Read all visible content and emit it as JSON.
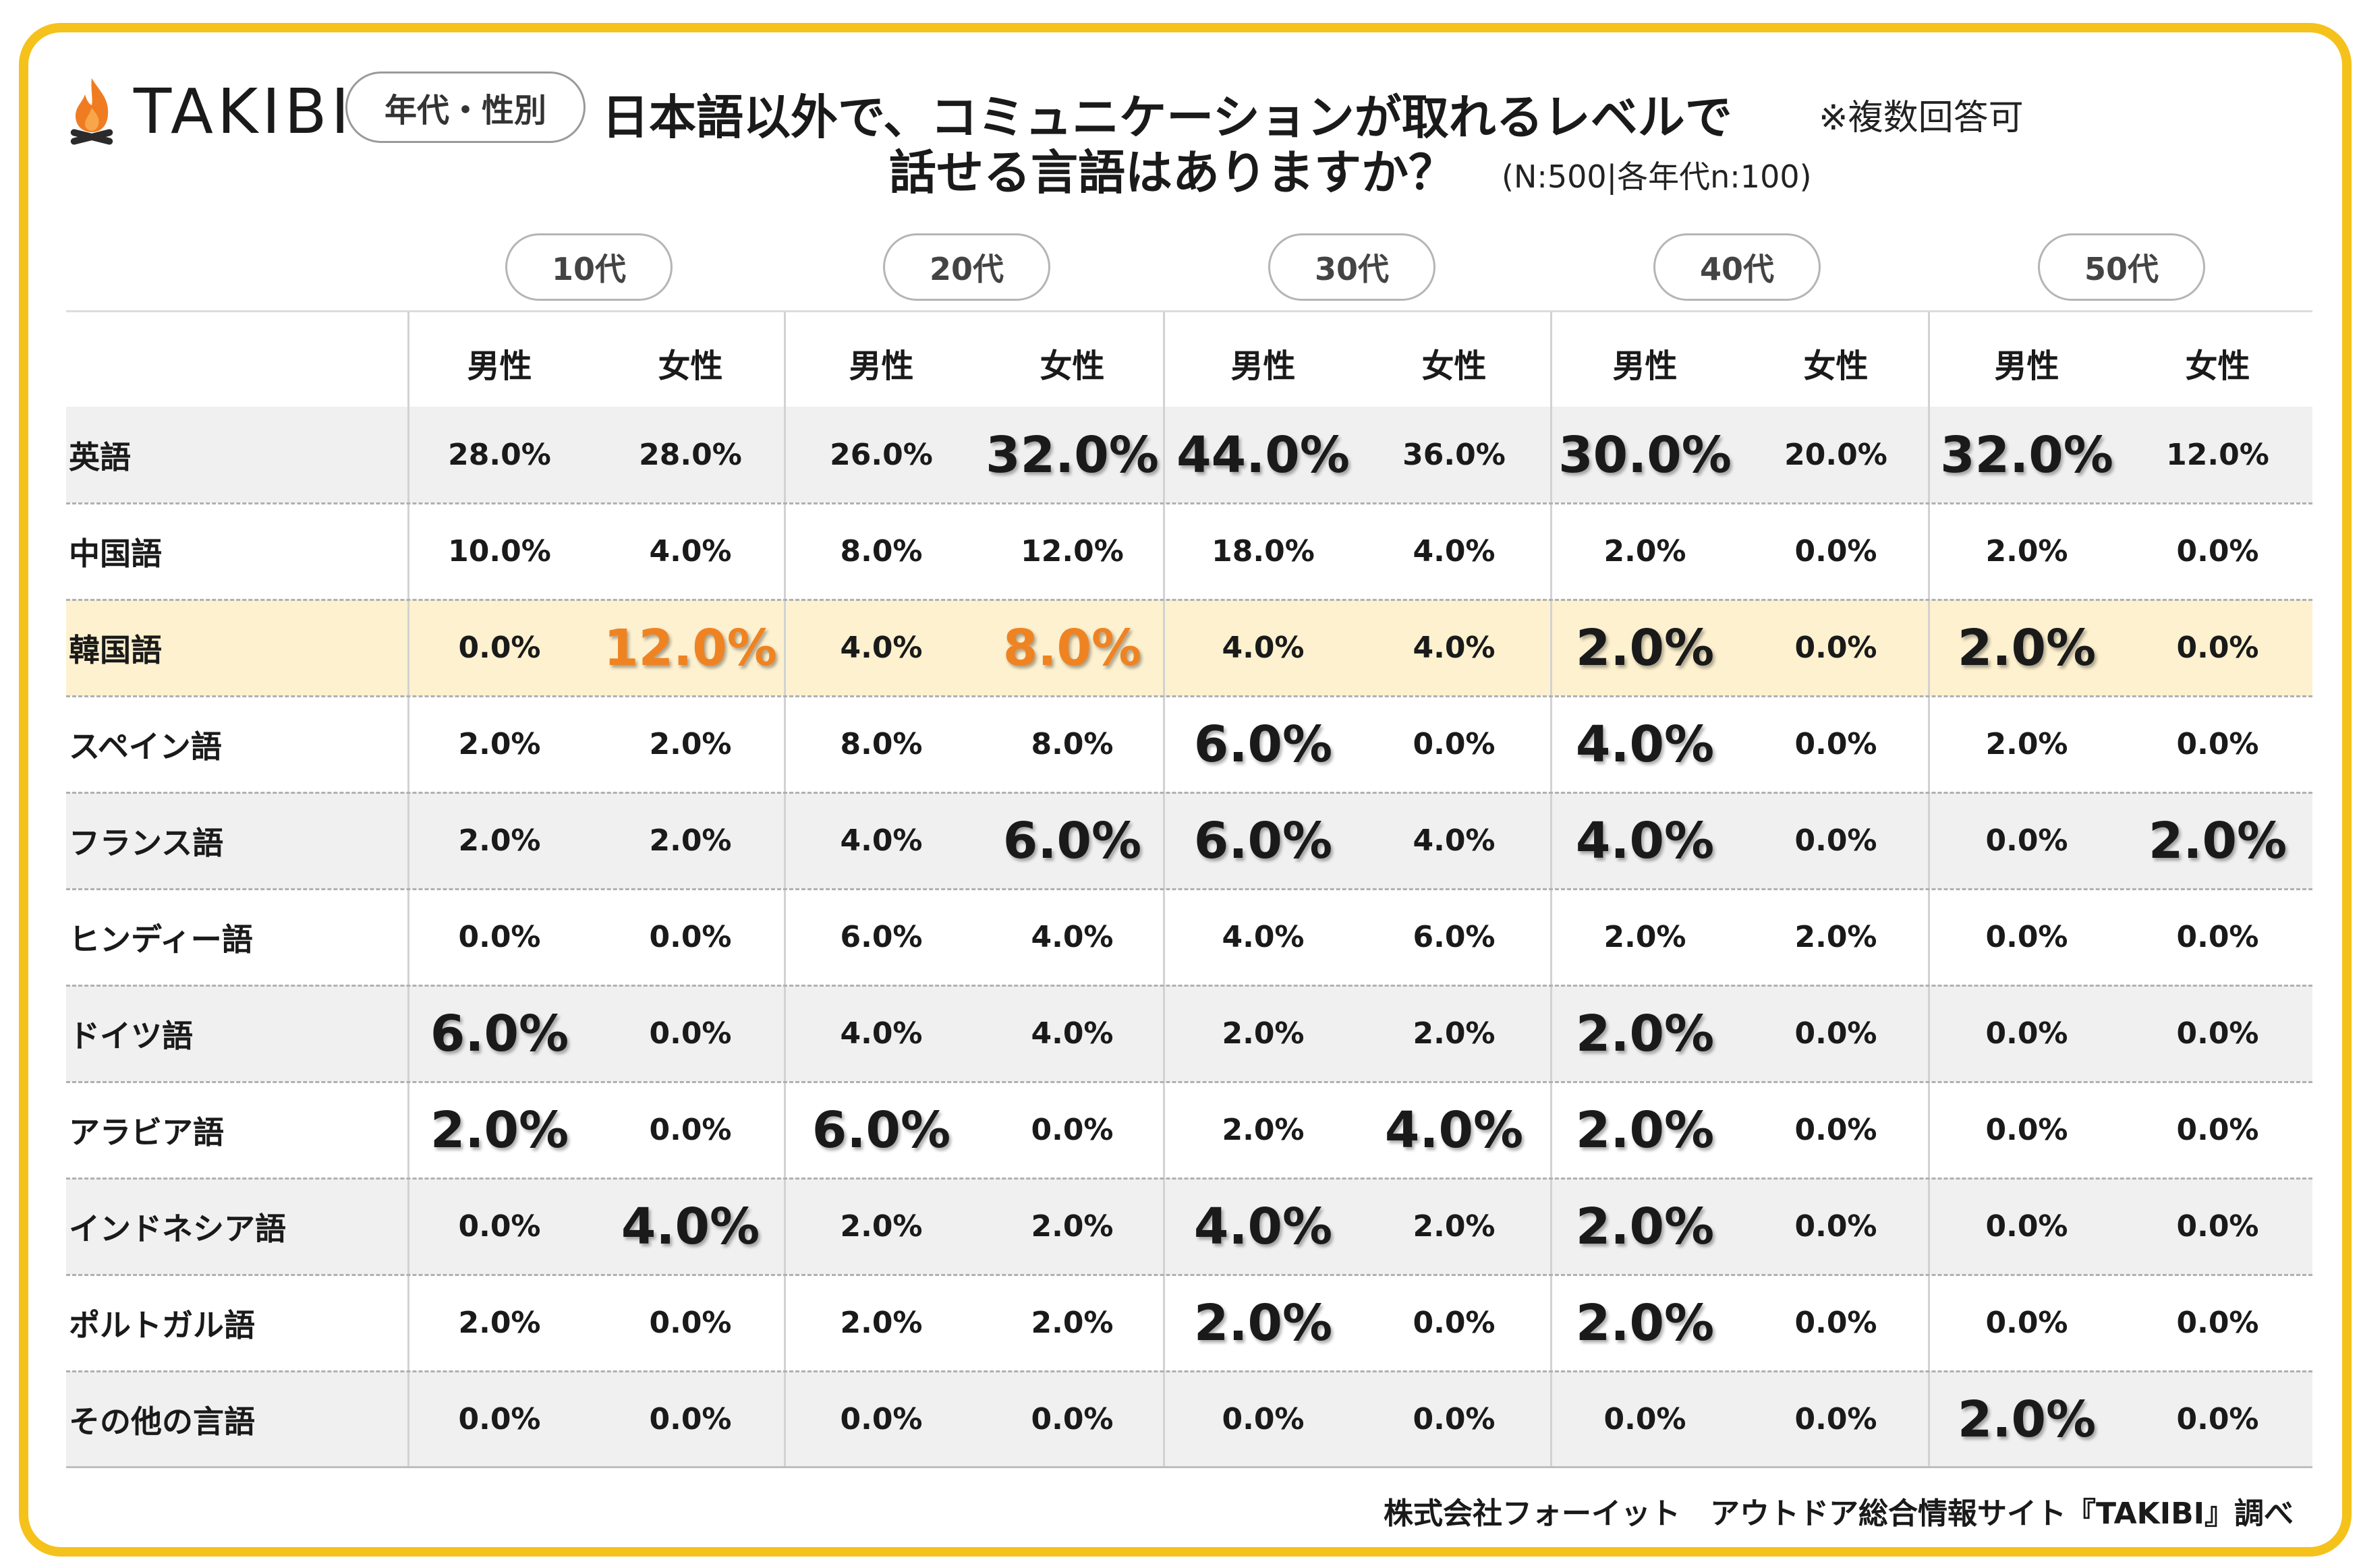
{
  "brand": {
    "name": "TAKIBI",
    "logo_icon": "campfire-icon",
    "flame_color": "#f07c22",
    "log_color": "#2b2b2b"
  },
  "header": {
    "category_tag": "年代・性別",
    "title_line1": "日本語以外で、コミュニケーションが取れるレベルで",
    "title_line2": "話せる言語はありますか？",
    "multi_answer_note": "※複数回答可",
    "sample_note": "(N:500|各年代n:100)"
  },
  "colors": {
    "frame": "#f5c21b",
    "row_shade": "#f0f0f0",
    "highlight_row": "#fdf1cf",
    "accent": "#ef8322"
  },
  "chart_data": {
    "type": "table",
    "age_groups": [
      "10代",
      "20代",
      "30代",
      "40代",
      "50代"
    ],
    "genders": [
      "男性",
      "女性"
    ],
    "rows": [
      {
        "language": "英語",
        "values": [
          "28.0%",
          "28.0%",
          "26.0%",
          "32.0%",
          "44.0%",
          "36.0%",
          "30.0%",
          "20.0%",
          "32.0%",
          "12.0%"
        ],
        "emphasis": [
          0,
          0,
          0,
          1,
          1,
          0,
          1,
          0,
          1,
          0
        ]
      },
      {
        "language": "中国語",
        "values": [
          "10.0%",
          "4.0%",
          "8.0%",
          "12.0%",
          "18.0%",
          "4.0%",
          "2.0%",
          "0.0%",
          "2.0%",
          "0.0%"
        ],
        "emphasis": [
          0,
          0,
          0,
          0,
          0,
          0,
          0,
          0,
          0,
          0
        ]
      },
      {
        "language": "韓国語",
        "highlight": true,
        "values": [
          "0.0%",
          "12.0%",
          "4.0%",
          "8.0%",
          "4.0%",
          "4.0%",
          "2.0%",
          "0.0%",
          "2.0%",
          "0.0%"
        ],
        "emphasis": [
          0,
          2,
          0,
          2,
          0,
          0,
          1,
          0,
          1,
          0
        ]
      },
      {
        "language": "スペイン語",
        "values": [
          "2.0%",
          "2.0%",
          "8.0%",
          "8.0%",
          "6.0%",
          "0.0%",
          "4.0%",
          "0.0%",
          "2.0%",
          "0.0%"
        ],
        "emphasis": [
          0,
          0,
          0,
          0,
          1,
          0,
          1,
          0,
          0,
          0
        ]
      },
      {
        "language": "フランス語",
        "values": [
          "2.0%",
          "2.0%",
          "4.0%",
          "6.0%",
          "6.0%",
          "4.0%",
          "4.0%",
          "0.0%",
          "0.0%",
          "2.0%"
        ],
        "emphasis": [
          0,
          0,
          0,
          1,
          1,
          0,
          1,
          0,
          0,
          1
        ]
      },
      {
        "language": "ヒンディー語",
        "values": [
          "0.0%",
          "0.0%",
          "6.0%",
          "4.0%",
          "4.0%",
          "6.0%",
          "2.0%",
          "2.0%",
          "0.0%",
          "0.0%"
        ],
        "emphasis": [
          0,
          0,
          0,
          0,
          0,
          0,
          0,
          0,
          0,
          0
        ]
      },
      {
        "language": "ドイツ語",
        "values": [
          "6.0%",
          "0.0%",
          "4.0%",
          "4.0%",
          "2.0%",
          "2.0%",
          "2.0%",
          "0.0%",
          "0.0%",
          "0.0%"
        ],
        "emphasis": [
          1,
          0,
          0,
          0,
          0,
          0,
          1,
          0,
          0,
          0
        ]
      },
      {
        "language": "アラビア語",
        "values": [
          "2.0%",
          "0.0%",
          "6.0%",
          "0.0%",
          "2.0%",
          "4.0%",
          "2.0%",
          "0.0%",
          "0.0%",
          "0.0%"
        ],
        "emphasis": [
          1,
          0,
          1,
          0,
          0,
          1,
          1,
          0,
          0,
          0
        ]
      },
      {
        "language": "インドネシア語",
        "values": [
          "0.0%",
          "4.0%",
          "2.0%",
          "2.0%",
          "4.0%",
          "2.0%",
          "2.0%",
          "0.0%",
          "0.0%",
          "0.0%"
        ],
        "emphasis": [
          0,
          1,
          0,
          0,
          1,
          0,
          1,
          0,
          0,
          0
        ]
      },
      {
        "language": "ポルトガル語",
        "values": [
          "2.0%",
          "0.0%",
          "2.0%",
          "2.0%",
          "2.0%",
          "0.0%",
          "2.0%",
          "0.0%",
          "0.0%",
          "0.0%"
        ],
        "emphasis": [
          0,
          0,
          0,
          0,
          1,
          0,
          1,
          0,
          0,
          0
        ]
      },
      {
        "language": "その他の言語",
        "values": [
          "0.0%",
          "0.0%",
          "0.0%",
          "0.0%",
          "0.0%",
          "0.0%",
          "0.0%",
          "0.0%",
          "2.0%",
          "0.0%"
        ],
        "emphasis": [
          0,
          0,
          0,
          0,
          0,
          0,
          0,
          0,
          1,
          0
        ]
      }
    ]
  },
  "footer": {
    "credit": "株式会社フォーイット　アウトドア総合情報サイト『TAKIBI』調べ"
  }
}
